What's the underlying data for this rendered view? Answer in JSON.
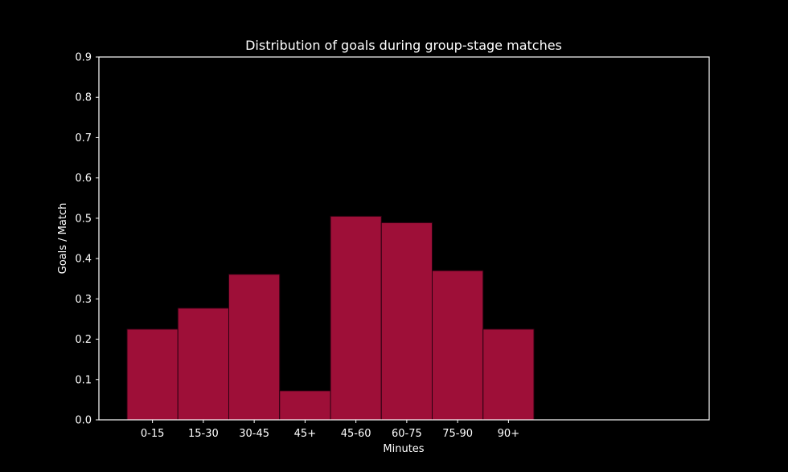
{
  "chart_data": {
    "type": "bar",
    "title": "Distribution of goals during group-stage matches",
    "xlabel": "Minutes",
    "ylabel": "Goals / Match",
    "categories": [
      "0-15",
      "15-30",
      "30-45",
      "45+",
      "45-60",
      "60-75",
      "75-90",
      "90+"
    ],
    "values": [
      0.225,
      0.277,
      0.361,
      0.072,
      0.505,
      0.489,
      0.37,
      0.225
    ],
    "ylim": [
      0,
      0.9
    ],
    "yticks": [
      "0.0",
      "0.1",
      "0.2",
      "0.3",
      "0.4",
      "0.5",
      "0.6",
      "0.7",
      "0.8",
      "0.9"
    ],
    "x_slots": 12,
    "grid": false,
    "legend": "none",
    "colors": {
      "background": "#000000",
      "bar": "#9e0f38",
      "bar_edge": "#2a0010",
      "axes": "#ffffff",
      "text": "#ffffff"
    }
  }
}
